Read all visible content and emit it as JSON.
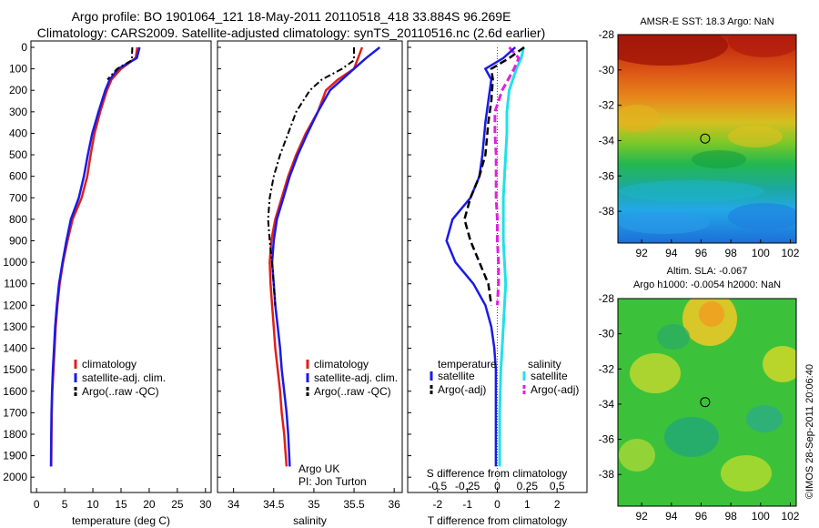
{
  "header": {
    "title_line1": "Argo profile: BO 1901064_121 18-May-2011 20110518_418 33.884S 96.269E",
    "title_line2": "Climatology: CARS2009. Satellite-adjusted climatology: synTS_20110516.nc (2.6d earlier)"
  },
  "colors": {
    "climatology": "#e0201c",
    "satellite": "#1a1ae6",
    "argo": "#000000",
    "salinity_satellite": "#22e0e8",
    "salinity_argo": "#e020e0"
  },
  "chart_data": [
    {
      "type": "line",
      "panel": "temperature",
      "xlabel": "temperature (deg C)",
      "ylim": [
        2050,
        0
      ],
      "xlim": [
        -1,
        31
      ],
      "xticks": [
        0,
        5,
        10,
        15,
        20,
        25,
        30
      ],
      "yticks": [
        0,
        100,
        200,
        300,
        400,
        500,
        600,
        700,
        800,
        900,
        1000,
        1100,
        1200,
        1300,
        1400,
        1500,
        1600,
        1700,
        1800,
        1900,
        2000
      ],
      "legend": [
        "climatology",
        "satellite-adj. clim.",
        "Argo(..raw -QC)"
      ],
      "series": [
        {
          "name": "climatology",
          "x": [
            17.9,
            17.6,
            15.0,
            13.3,
            12.5,
            11.3,
            10.3,
            9.6,
            9.0,
            8.0,
            6.4,
            5.5,
            4.7,
            4.1,
            3.7,
            3.4,
            3.2,
            3.0,
            2.8,
            2.7,
            2.65,
            2.6
          ],
          "y": [
            0,
            50,
            100,
            150,
            200,
            300,
            400,
            500,
            600,
            700,
            800,
            900,
            1000,
            1100,
            1200,
            1300,
            1400,
            1500,
            1600,
            1700,
            1800,
            1950
          ]
        },
        {
          "name": "satellite-adj. clim.",
          "x": [
            18.3,
            17.8,
            14.5,
            13.0,
            12.2,
            11.0,
            9.9,
            9.1,
            8.4,
            7.5,
            6.1,
            5.3,
            4.6,
            4.0,
            3.6,
            3.3,
            3.1,
            2.9,
            2.75,
            2.65,
            2.6,
            2.55
          ],
          "y": [
            0,
            50,
            100,
            150,
            200,
            300,
            400,
            500,
            600,
            700,
            800,
            900,
            1000,
            1100,
            1200,
            1300,
            1400,
            1500,
            1600,
            1700,
            1800,
            1950
          ]
        },
        {
          "name": "Argo(..raw -QC)",
          "x": [
            17.0,
            16.9,
            14.3,
            12.6
          ],
          "y": [
            0,
            60,
            100,
            150
          ]
        }
      ]
    },
    {
      "type": "line",
      "panel": "salinity",
      "xlabel": "salinity",
      "ylim": [
        2050,
        0
      ],
      "xlim": [
        33.8,
        36.1
      ],
      "xticks": [
        34,
        34.5,
        35,
        35.5,
        36
      ],
      "legend": [
        "climatology",
        "satellite-adj. clim.",
        "Argo(..raw -QC)"
      ],
      "annotation_line1": "Argo UK",
      "annotation_line2": "PI: Jon Turton",
      "series": [
        {
          "name": "climatology",
          "x": [
            35.6,
            35.55,
            35.5,
            35.3,
            35.15,
            35.05,
            34.9,
            34.78,
            34.68,
            34.6,
            34.52,
            34.47,
            34.45,
            34.46,
            34.48,
            34.5,
            34.52,
            34.55,
            34.58,
            34.6,
            34.63,
            34.66
          ],
          "y": [
            0,
            50,
            100,
            150,
            200,
            300,
            400,
            500,
            600,
            700,
            800,
            900,
            1000,
            1100,
            1200,
            1300,
            1400,
            1500,
            1600,
            1700,
            1800,
            1950
          ]
        },
        {
          "name": "satellite-adj. clim.",
          "x": [
            35.82,
            35.65,
            35.5,
            35.35,
            35.2,
            35.05,
            34.92,
            34.8,
            34.7,
            34.62,
            34.54,
            34.5,
            34.48,
            34.5,
            34.52,
            34.55,
            34.58,
            34.6,
            34.63,
            34.66,
            34.68,
            34.7
          ],
          "y": [
            0,
            50,
            100,
            150,
            200,
            300,
            400,
            500,
            600,
            700,
            800,
            900,
            1000,
            1100,
            1200,
            1300,
            1400,
            1500,
            1600,
            1700,
            1800,
            1950
          ]
        },
        {
          "name": "Argo(..raw -QC)",
          "x": [
            35.5,
            35.5,
            35.35,
            35.1,
            34.95,
            34.78,
            34.68,
            34.58,
            34.5,
            34.45,
            34.43,
            34.45,
            34.48,
            34.5,
            34.52
          ],
          "y": [
            0,
            60,
            100,
            150,
            200,
            300,
            400,
            500,
            600,
            700,
            800,
            900,
            1000,
            1100,
            1200
          ]
        }
      ]
    },
    {
      "type": "line",
      "panel": "differences",
      "xlabel": "T difference from climatology",
      "xlabel_top": "S difference from climatology",
      "xlim": [
        -3,
        3
      ],
      "xticks": [
        -2,
        -1,
        0,
        1,
        2
      ],
      "xticks_top": [
        -0.5,
        -0.25,
        0,
        0.25,
        0.5
      ],
      "legend_temperature_title": "temperature",
      "legend_salinity_title": "salinity",
      "legend_temperature": [
        "satellite",
        "Argo(-adj)"
      ],
      "legend_salinity": [
        "satellite",
        "Argo(-adj)"
      ],
      "series": [
        {
          "name": "temperature satellite",
          "x": [
            0.6,
            0.2,
            -0.4,
            -0.2,
            -0.3,
            -0.4,
            -0.5,
            -0.6,
            -0.9,
            -1.5,
            -1.7,
            -1.4,
            -0.8,
            -0.4,
            -0.2,
            -0.1,
            -0.05,
            -0.05,
            -0.05,
            -0.05,
            -0.05
          ],
          "y": [
            0,
            50,
            100,
            150,
            250,
            350,
            500,
            600,
            700,
            800,
            900,
            1000,
            1100,
            1200,
            1300,
            1400,
            1500,
            1600,
            1700,
            1800,
            1950
          ]
        },
        {
          "name": "temperature Argo(-adj)",
          "x": [
            0.9,
            0.4,
            -0.2,
            -0.15,
            -0.2,
            -0.3,
            -0.4,
            -0.6,
            -0.9,
            -1.1,
            -0.9,
            -0.6,
            -0.3,
            -0.2
          ],
          "y": [
            0,
            50,
            100,
            150,
            250,
            350,
            500,
            600,
            700,
            800,
            900,
            1000,
            1100,
            1200
          ]
        },
        {
          "name": "salinity satellite",
          "x": [
            0.22,
            0.2,
            0.16,
            0.1,
            0.08,
            0.08,
            0.07,
            0.06,
            0.05,
            0.05,
            0.05,
            0.06,
            0.07,
            0.06,
            0.05,
            0.04,
            0.03,
            0.02,
            0.02
          ],
          "y": [
            0,
            50,
            100,
            200,
            300,
            400,
            500,
            600,
            700,
            800,
            900,
            1000,
            1100,
            1200,
            1300,
            1400,
            1500,
            1700,
            1950
          ]
        },
        {
          "name": "salinity Argo(-adj)",
          "x": [
            0.1,
            0.18,
            0.14,
            0.04,
            -0.02,
            -0.02,
            -0.01,
            -0.01,
            -0.01,
            0.0,
            0.0,
            0.01,
            0.01,
            0.0
          ],
          "y": [
            0,
            50,
            100,
            200,
            300,
            400,
            500,
            600,
            700,
            800,
            900,
            1000,
            1100,
            1200
          ]
        }
      ]
    },
    {
      "type": "heatmap",
      "panel": "sst_map",
      "title": "AMSR-E SST: 18.3  Argo: NaN",
      "xticks": [
        92,
        94,
        96,
        98,
        100,
        102
      ],
      "yticks": [
        -28,
        -30,
        -32,
        -34,
        -36,
        -38
      ],
      "marker": {
        "lon": 96.269,
        "lat": -33.884
      }
    },
    {
      "type": "heatmap",
      "panel": "sla_map",
      "title_line1": "Altim. SLA: -0.067",
      "title_line2": "Argo h1000: -0.0054  h2000: NaN",
      "xticks": [
        92,
        94,
        96,
        98,
        100,
        102
      ],
      "yticks": [
        -28,
        -30,
        -32,
        -34,
        -36,
        -38
      ],
      "marker": {
        "lon": 96.269,
        "lat": -33.884
      }
    }
  ],
  "footer": {
    "credit": "©IMOS 28-Sep-2011 20:06:40"
  }
}
